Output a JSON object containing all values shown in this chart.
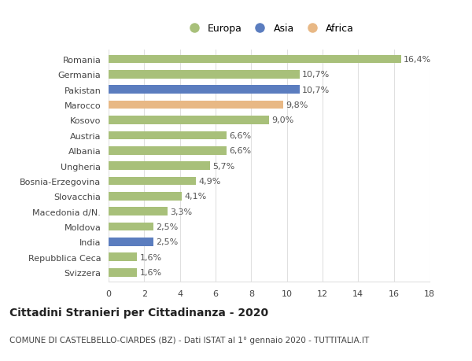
{
  "categories": [
    "Svizzera",
    "Repubblica Ceca",
    "India",
    "Moldova",
    "Macedonia d/N.",
    "Slovacchia",
    "Bosnia-Erzegovina",
    "Ungheria",
    "Albania",
    "Austria",
    "Kosovo",
    "Marocco",
    "Pakistan",
    "Germania",
    "Romania"
  ],
  "values": [
    1.6,
    1.6,
    2.5,
    2.5,
    3.3,
    4.1,
    4.9,
    5.7,
    6.6,
    6.6,
    9.0,
    9.8,
    10.7,
    10.7,
    16.4
  ],
  "labels": [
    "1,6%",
    "1,6%",
    "2,5%",
    "2,5%",
    "3,3%",
    "4,1%",
    "4,9%",
    "5,7%",
    "6,6%",
    "6,6%",
    "9,0%",
    "9,8%",
    "10,7%",
    "10,7%",
    "16,4%"
  ],
  "continent": [
    "Europa",
    "Europa",
    "Asia",
    "Europa",
    "Europa",
    "Europa",
    "Europa",
    "Europa",
    "Europa",
    "Europa",
    "Europa",
    "Africa",
    "Asia",
    "Europa",
    "Europa"
  ],
  "colors": {
    "Europa": "#a8c07a",
    "Asia": "#5b7dbf",
    "Africa": "#e8b885"
  },
  "legend_items": [
    "Europa",
    "Asia",
    "Africa"
  ],
  "title": "Cittadini Stranieri per Cittadinanza - 2020",
  "subtitle": "COMUNE DI CASTELBELLO-CIARDES (BZ) - Dati ISTAT al 1° gennaio 2020 - TUTTITALIA.IT",
  "xlim": [
    0,
    18
  ],
  "xticks": [
    0,
    2,
    4,
    6,
    8,
    10,
    12,
    14,
    16,
    18
  ],
  "background_color": "#ffffff",
  "bar_height": 0.55,
  "grid_color": "#e0e0e0",
  "label_fontsize": 8.0,
  "tick_fontsize": 8.0,
  "title_fontsize": 10,
  "subtitle_fontsize": 7.5
}
